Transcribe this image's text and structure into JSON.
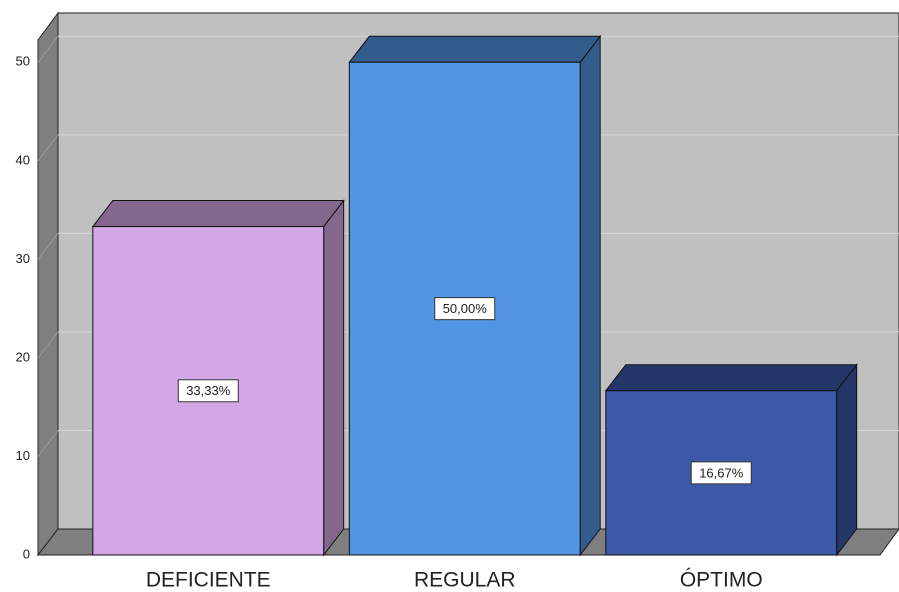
{
  "chart_data": {
    "type": "bar",
    "categories": [
      "DEFICIENTE",
      "REGULAR",
      "ÓPTIMO"
    ],
    "values": [
      33.33,
      50,
      16.67
    ],
    "value_labels": [
      "33,33%",
      "50,00%",
      "16,67%"
    ],
    "colors": [
      "#d3a6e6",
      "#5394e3",
      "#3c58a8"
    ],
    "ylim": [
      0,
      55
    ],
    "yticks": [
      0,
      10,
      20,
      30,
      40,
      50
    ],
    "grid": true
  }
}
